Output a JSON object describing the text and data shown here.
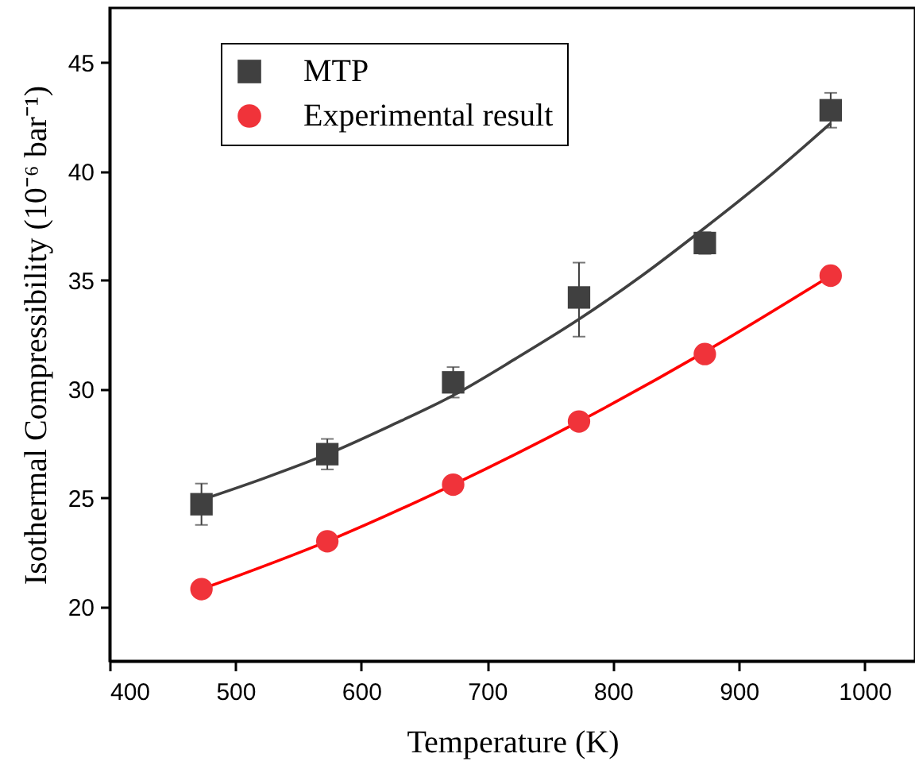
{
  "chart_data": {
    "type": "scatter",
    "xlabel": "Temperature (K)",
    "ylabel": "Isothermal Compressibility (10⁻⁶ bar⁻¹)",
    "x": [
      473,
      573,
      673,
      773,
      873,
      973
    ],
    "series": [
      {
        "name": "MTP",
        "color": "#404040",
        "marker": "square",
        "values": [
          24.7,
          27.0,
          30.3,
          34.2,
          36.7,
          42.8
        ],
        "errors": [
          0.95,
          0.7,
          0.7,
          [
            32.4,
            35.8
          ],
          0.5,
          0.8
        ]
      },
      {
        "name": "Experimental result",
        "color": "#f0333a",
        "marker": "circle",
        "values": [
          20.8,
          23.0,
          25.6,
          28.5,
          31.6,
          35.2
        ]
      },
      {
        "type": "line",
        "color": "#404040",
        "x": [
          473,
          523,
          573,
          623,
          673,
          723,
          773,
          823,
          873,
          923,
          973
        ],
        "values": [
          24.9,
          25.9,
          27.0,
          28.3,
          29.7,
          31.4,
          33.2,
          35.2,
          37.4,
          39.7,
          42.2
        ]
      },
      {
        "type": "line",
        "color": "#ff0000",
        "x": [
          473,
          573,
          673,
          773,
          873,
          973
        ],
        "values": [
          20.8,
          23.0,
          25.6,
          28.5,
          31.7,
          35.2
        ]
      }
    ],
    "xlim": [
      400,
      1040
    ],
    "xticks": [
      400,
      500,
      600,
      700,
      800,
      900,
      1000
    ],
    "ylim": [
      17.5,
      47.5
    ],
    "yticks": [
      20,
      25,
      30,
      35,
      40,
      45
    ],
    "legend": "top left",
    "grid": false
  }
}
